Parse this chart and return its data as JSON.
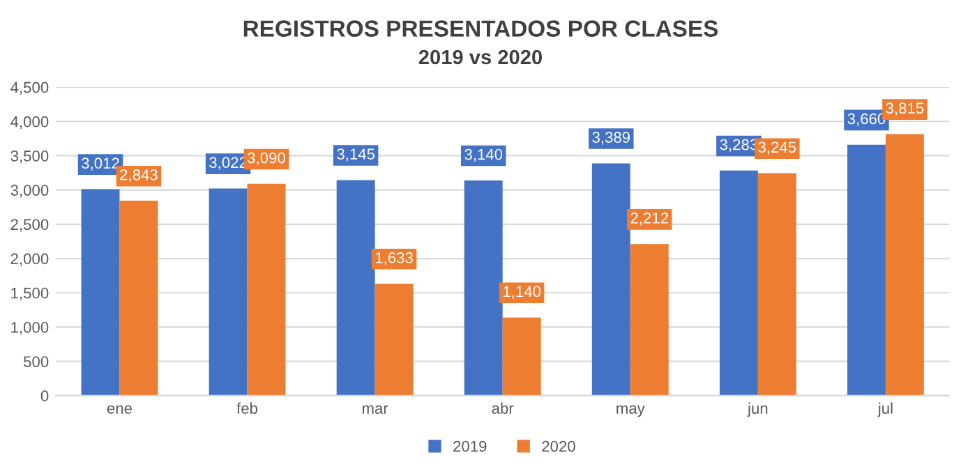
{
  "chart_data": {
    "type": "bar",
    "title": "REGISTROS PRESENTADOS POR CLASES",
    "subtitle": "2019 vs 2020",
    "categories": [
      "ene",
      "feb",
      "mar",
      "abr",
      "may",
      "jun",
      "jul"
    ],
    "series": [
      {
        "name": "2019",
        "color": "#4472c4",
        "values": [
          3012,
          3022,
          3145,
          3140,
          3389,
          3283,
          3660
        ],
        "value_labels": [
          "3,012",
          "3,022",
          "3,145",
          "3,140",
          "3,389",
          "3,283",
          "3,660"
        ]
      },
      {
        "name": "2020",
        "color": "#ed7d31",
        "values": [
          2843,
          3090,
          1633,
          1140,
          2212,
          3245,
          3815
        ],
        "value_labels": [
          "2,843",
          "3,090",
          "1,633",
          "1,140",
          "2,212",
          "3,245",
          "3,815"
        ]
      }
    ],
    "ylim": [
      0,
      4500
    ],
    "yticks": [
      0,
      500,
      {
        "value": 1000,
        "label": "1,000"
      },
      {
        "value": 1500,
        "label": "1,500"
      },
      {
        "value": 2000,
        "label": "2,000"
      },
      {
        "value": 2500,
        "label": "2,500"
      },
      {
        "value": 3000,
        "label": "3,000"
      },
      {
        "value": 3500,
        "label": "3,500"
      },
      {
        "value": 4000,
        "label": "4,000"
      },
      {
        "value": 4500,
        "label": "4,500"
      }
    ],
    "grid": "y",
    "legend": "bottom"
  }
}
